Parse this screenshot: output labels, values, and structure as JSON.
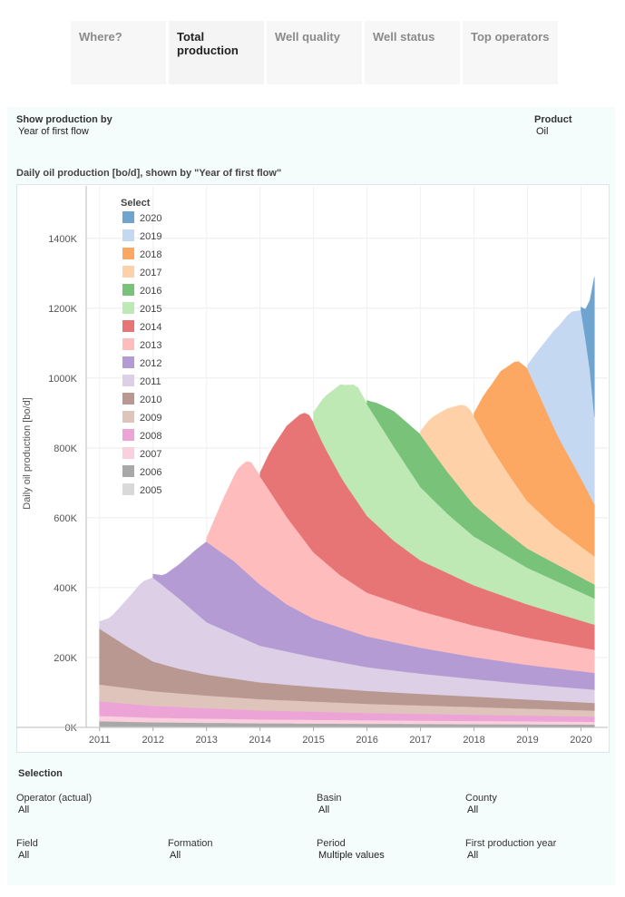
{
  "tabs": [
    {
      "label": "Where?",
      "active": false
    },
    {
      "label": "Total production",
      "active": true
    },
    {
      "label": "Well quality",
      "active": false
    },
    {
      "label": "Well status",
      "active": false
    },
    {
      "label": "Top operators",
      "active": false
    }
  ],
  "controls": {
    "show_by_label": "Show production by",
    "show_by_value": "Year of first flow",
    "product_label": "Product",
    "product_value": "Oil"
  },
  "chart_data": {
    "type": "area",
    "title": "Daily oil production [bo/d], shown by \"Year of first flow\"",
    "ylabel": "Daily oil production [bo/d]",
    "xlabel": "",
    "x_ticks": [
      "2011",
      "2012",
      "2013",
      "2014",
      "2015",
      "2016",
      "2017",
      "2018",
      "2019",
      "2020"
    ],
    "y_ticks": [
      "0K",
      "200K",
      "400K",
      "600K",
      "800K",
      "1000K",
      "1200K",
      "1400K"
    ],
    "ylim": [
      0,
      1550000
    ],
    "xlim": [
      2010.75,
      2020.5
    ],
    "stacked": true,
    "legend_title": "Select",
    "legend_placement": "top-left",
    "colors": {
      "2005": "#d9d9d9",
      "2006": "#a8a8a8",
      "2007": "#fbd0de",
      "2008": "#eca4d6",
      "2009": "#dfc4bb",
      "2010": "#b89890",
      "2011": "#dccfe6",
      "2012": "#b49bd3",
      "2013": "#ffbcbc",
      "2014": "#e87575",
      "2015": "#bee9b4",
      "2016": "#78c27a",
      "2017": "#ffd1a8",
      "2018": "#fca762",
      "2019": "#c5d8f1",
      "2020": "#6fa4cf"
    },
    "series": [
      {
        "name": "2005",
        "start": 2011.0,
        "points": [
          [
            2011.0,
            3000
          ],
          [
            2013,
            2600
          ],
          [
            2016,
            2200
          ],
          [
            2020.25,
            1800
          ]
        ]
      },
      {
        "name": "2006",
        "start": 2011.0,
        "points": [
          [
            2011.0,
            15000
          ],
          [
            2012,
            12000
          ],
          [
            2014,
            9500
          ],
          [
            2017,
            8000
          ],
          [
            2020.25,
            6500
          ]
        ]
      },
      {
        "name": "2007",
        "start": 2011.0,
        "points": [
          [
            2011.0,
            15000
          ],
          [
            2012,
            13000
          ],
          [
            2014,
            11000
          ],
          [
            2017,
            9500
          ],
          [
            2020.25,
            8000
          ]
        ]
      },
      {
        "name": "2008",
        "start": 2011.0,
        "points": [
          [
            2011.0,
            42000
          ],
          [
            2012,
            34000
          ],
          [
            2013,
            30000
          ],
          [
            2014,
            26000
          ],
          [
            2016,
            21000
          ],
          [
            2018,
            18000
          ],
          [
            2020.25,
            15000
          ]
        ]
      },
      {
        "name": "2009",
        "start": 2011.0,
        "points": [
          [
            2011.0,
            48000
          ],
          [
            2012,
            42000
          ],
          [
            2013,
            36000
          ],
          [
            2014,
            32000
          ],
          [
            2016,
            26000
          ],
          [
            2018,
            22000
          ],
          [
            2020.25,
            17000
          ]
        ]
      },
      {
        "name": "2010",
        "start": 2011.0,
        "points": [
          [
            2011.0,
            160000
          ],
          [
            2011.5,
            120000
          ],
          [
            2012,
            85000
          ],
          [
            2012.5,
            70000
          ],
          [
            2013,
            60000
          ],
          [
            2014,
            48000
          ],
          [
            2015,
            42000
          ],
          [
            2016,
            37000
          ],
          [
            2017,
            33000
          ],
          [
            2018,
            30000
          ],
          [
            2019,
            26000
          ],
          [
            2020.25,
            22000
          ]
        ]
      },
      {
        "name": "2011",
        "start": 2011.0,
        "points": [
          [
            2011.0,
            20000
          ],
          [
            2011.2,
            50000
          ],
          [
            2011.5,
            130000
          ],
          [
            2011.8,
            210000
          ],
          [
            2012,
            240000
          ],
          [
            2012.5,
            200000
          ],
          [
            2013,
            150000
          ],
          [
            2014,
            105000
          ],
          [
            2015,
            85000
          ],
          [
            2016,
            68000
          ],
          [
            2017,
            58000
          ],
          [
            2018,
            50000
          ],
          [
            2019,
            44000
          ],
          [
            2020.25,
            38000
          ]
        ]
      },
      {
        "name": "2012",
        "start": 2012.0,
        "points": [
          [
            2012.0,
            10000
          ],
          [
            2012.2,
            30000
          ],
          [
            2012.5,
            100000
          ],
          [
            2012.8,
            180000
          ],
          [
            2013.0,
            230000
          ],
          [
            2013.5,
            210000
          ],
          [
            2014,
            175000
          ],
          [
            2014.5,
            135000
          ],
          [
            2015,
            110000
          ],
          [
            2016,
            88000
          ],
          [
            2017,
            74000
          ],
          [
            2018,
            63000
          ],
          [
            2019,
            55000
          ],
          [
            2020.25,
            48000
          ]
        ]
      },
      {
        "name": "2013",
        "start": 2013.0,
        "points": [
          [
            2013.0,
            10000
          ],
          [
            2013.3,
            150000
          ],
          [
            2013.6,
            280000
          ],
          [
            2013.8,
            330000
          ],
          [
            2014.0,
            310000
          ],
          [
            2014.5,
            250000
          ],
          [
            2015,
            190000
          ],
          [
            2015.5,
            150000
          ],
          [
            2016,
            125000
          ],
          [
            2017,
            105000
          ],
          [
            2018,
            90000
          ],
          [
            2019,
            78000
          ],
          [
            2020.25,
            66000
          ]
        ]
      },
      {
        "name": "2014",
        "start": 2014.0,
        "points": [
          [
            2014.0,
            10000
          ],
          [
            2014.2,
            120000
          ],
          [
            2014.5,
            260000
          ],
          [
            2014.8,
            360000
          ],
          [
            2014.95,
            380000
          ],
          [
            2015.2,
            330000
          ],
          [
            2015.6,
            270000
          ],
          [
            2016,
            220000
          ],
          [
            2016.5,
            175000
          ],
          [
            2017,
            145000
          ],
          [
            2018,
            115000
          ],
          [
            2019,
            95000
          ],
          [
            2020.25,
            72000
          ]
        ]
      },
      {
        "name": "2015",
        "start": 2015.0,
        "points": [
          [
            2015.0,
            30000
          ],
          [
            2015.2,
            140000
          ],
          [
            2015.5,
            260000
          ],
          [
            2015.8,
            330000
          ],
          [
            2016.0,
            320000
          ],
          [
            2016.5,
            270000
          ],
          [
            2017,
            210000
          ],
          [
            2017.5,
            170000
          ],
          [
            2018,
            140000
          ],
          [
            2019,
            105000
          ],
          [
            2020.25,
            75000
          ]
        ]
      },
      {
        "name": "2016",
        "start": 2016.0,
        "points": [
          [
            2016.0,
            10000
          ],
          [
            2016.2,
            50000
          ],
          [
            2016.5,
            100000
          ],
          [
            2016.8,
            130000
          ],
          [
            2017.0,
            150000
          ],
          [
            2017.5,
            120000
          ],
          [
            2018,
            90000
          ],
          [
            2018.5,
            70000
          ],
          [
            2019,
            55000
          ],
          [
            2020.25,
            40000
          ]
        ]
      },
      {
        "name": "2017",
        "start": 2017.0,
        "points": [
          [
            2017.0,
            10000
          ],
          [
            2017.2,
            90000
          ],
          [
            2017.5,
            180000
          ],
          [
            2017.8,
            250000
          ],
          [
            2017.95,
            260000
          ],
          [
            2018.3,
            210000
          ],
          [
            2018.7,
            165000
          ],
          [
            2019,
            135000
          ],
          [
            2019.5,
            105000
          ],
          [
            2020.25,
            80000
          ]
        ]
      },
      {
        "name": "2018",
        "start": 2018.0,
        "points": [
          [
            2018.0,
            10000
          ],
          [
            2018.2,
            120000
          ],
          [
            2018.5,
            260000
          ],
          [
            2018.8,
            360000
          ],
          [
            2019.0,
            380000
          ],
          [
            2019.3,
            320000
          ],
          [
            2019.6,
            260000
          ],
          [
            2020.0,
            195000
          ],
          [
            2020.25,
            150000
          ]
        ]
      },
      {
        "name": "2019",
        "start": 2019.0,
        "points": [
          [
            2019.0,
            10000
          ],
          [
            2019.2,
            120000
          ],
          [
            2019.5,
            280000
          ],
          [
            2019.8,
            420000
          ],
          [
            2020.0,
            480000
          ],
          [
            2020.15,
            380000
          ],
          [
            2020.25,
            250000
          ]
        ]
      },
      {
        "name": "2020",
        "start": 2020.0,
        "points": [
          [
            2020.0,
            10000
          ],
          [
            2020.08,
            80000
          ],
          [
            2020.15,
            160000
          ],
          [
            2020.25,
            400000
          ]
        ]
      }
    ]
  },
  "selection": {
    "heading": "Selection",
    "filters": [
      {
        "label": "Operator (actual)",
        "value": "All"
      },
      {
        "label": "Basin",
        "value": "All"
      },
      {
        "label": "County",
        "value": "All"
      },
      {
        "label": "Field",
        "value": "All"
      },
      {
        "label": "Formation",
        "value": "All"
      },
      {
        "label": "Period",
        "value": "Multiple values"
      },
      {
        "label": "First production year",
        "value": "All"
      }
    ]
  }
}
